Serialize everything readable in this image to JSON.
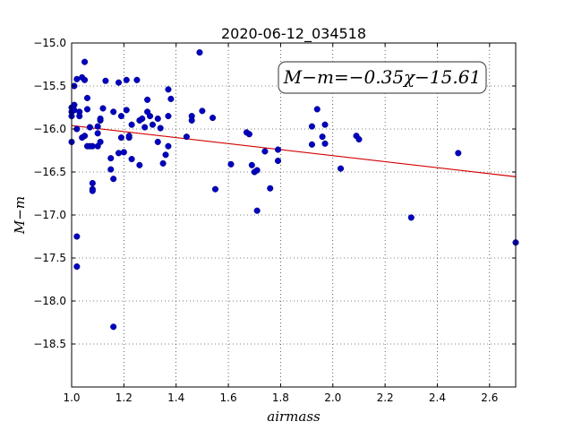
{
  "chart_data": {
    "type": "scatter",
    "title": "2020-06-12_034518",
    "xlabel": "airmass",
    "ylabel": "M−m",
    "xlim": [
      1.0,
      2.7
    ],
    "ylim": [
      -15.0,
      -19.0
    ],
    "y_inverted": true,
    "grid": true,
    "x_ticks": [
      "1.0",
      "1.2",
      "1.4",
      "1.6",
      "1.8",
      "2.0",
      "2.2",
      "2.4",
      "2.6"
    ],
    "y_ticks": [
      "−15.0",
      "−15.5",
      "−16.0",
      "−16.5",
      "−17.0",
      "−17.5",
      "−18.0",
      "−18.5"
    ],
    "annotation": "M−m=−0.35χ−15.61",
    "fit": {
      "slope": -0.35,
      "intercept": -15.61,
      "color": "#d40000"
    },
    "point_color": "#0000c0",
    "points": [
      [
        1.0,
        -15.8
      ],
      [
        1.0,
        -15.75
      ],
      [
        1.0,
        -15.85
      ],
      [
        1.0,
        -16.15
      ],
      [
        1.01,
        -15.5
      ],
      [
        1.01,
        -15.72
      ],
      [
        1.01,
        -15.78
      ],
      [
        1.02,
        -16.0
      ],
      [
        1.02,
        -17.25
      ],
      [
        1.02,
        -17.6
      ],
      [
        1.02,
        -15.42
      ],
      [
        1.03,
        -15.8
      ],
      [
        1.03,
        -15.85
      ],
      [
        1.04,
        -15.4
      ],
      [
        1.04,
        -16.1
      ],
      [
        1.05,
        -16.08
      ],
      [
        1.05,
        -15.22
      ],
      [
        1.05,
        -15.43
      ],
      [
        1.06,
        -15.64
      ],
      [
        1.06,
        -15.77
      ],
      [
        1.06,
        -16.2
      ],
      [
        1.07,
        -15.98
      ],
      [
        1.07,
        -16.2
      ],
      [
        1.08,
        -16.2
      ],
      [
        1.08,
        -16.63
      ],
      [
        1.08,
        -16.7
      ],
      [
        1.08,
        -16.72
      ],
      [
        1.1,
        -16.05
      ],
      [
        1.1,
        -16.2
      ],
      [
        1.1,
        -15.97
      ],
      [
        1.11,
        -15.9
      ],
      [
        1.11,
        -15.88
      ],
      [
        1.11,
        -16.15
      ],
      [
        1.12,
        -15.76
      ],
      [
        1.13,
        -15.44
      ],
      [
        1.15,
        -16.34
      ],
      [
        1.15,
        -16.47
      ],
      [
        1.16,
        -16.58
      ],
      [
        1.16,
        -15.8
      ],
      [
        1.16,
        -18.3
      ],
      [
        1.18,
        -15.46
      ],
      [
        1.18,
        -16.28
      ],
      [
        1.19,
        -15.85
      ],
      [
        1.19,
        -16.1
      ],
      [
        1.2,
        -16.27
      ],
      [
        1.21,
        -15.43
      ],
      [
        1.21,
        -15.78
      ],
      [
        1.22,
        -16.1
      ],
      [
        1.22,
        -16.08
      ],
      [
        1.23,
        -15.95
      ],
      [
        1.23,
        -16.35
      ],
      [
        1.25,
        -15.43
      ],
      [
        1.26,
        -15.9
      ],
      [
        1.26,
        -16.42
      ],
      [
        1.27,
        -15.88
      ],
      [
        1.28,
        -15.98
      ],
      [
        1.29,
        -15.8
      ],
      [
        1.29,
        -15.66
      ],
      [
        1.3,
        -15.85
      ],
      [
        1.31,
        -15.95
      ],
      [
        1.33,
        -15.88
      ],
      [
        1.33,
        -16.15
      ],
      [
        1.34,
        -15.99
      ],
      [
        1.35,
        -16.4
      ],
      [
        1.36,
        -16.3
      ],
      [
        1.37,
        -15.54
      ],
      [
        1.37,
        -15.85
      ],
      [
        1.37,
        -16.2
      ],
      [
        1.38,
        -15.65
      ],
      [
        1.44,
        -16.09
      ],
      [
        1.46,
        -15.85
      ],
      [
        1.46,
        -15.9
      ],
      [
        1.49,
        -15.11
      ],
      [
        1.5,
        -15.79
      ],
      [
        1.54,
        -15.87
      ],
      [
        1.55,
        -16.7
      ],
      [
        1.61,
        -16.41
      ],
      [
        1.67,
        -16.04
      ],
      [
        1.68,
        -16.06
      ],
      [
        1.69,
        -16.42
      ],
      [
        1.7,
        -16.5
      ],
      [
        1.71,
        -16.95
      ],
      [
        1.71,
        -16.48
      ],
      [
        1.74,
        -16.26
      ],
      [
        1.76,
        -16.69
      ],
      [
        1.79,
        -16.37
      ],
      [
        1.79,
        -16.24
      ],
      [
        1.92,
        -16.18
      ],
      [
        1.92,
        -15.97
      ],
      [
        1.94,
        -15.77
      ],
      [
        1.96,
        -16.09
      ],
      [
        1.97,
        -16.17
      ],
      [
        1.97,
        -15.95
      ],
      [
        2.03,
        -16.46
      ],
      [
        2.09,
        -16.08
      ],
      [
        2.1,
        -16.12
      ],
      [
        2.3,
        -17.03
      ],
      [
        2.48,
        -16.28
      ],
      [
        2.7,
        -17.32
      ]
    ]
  }
}
